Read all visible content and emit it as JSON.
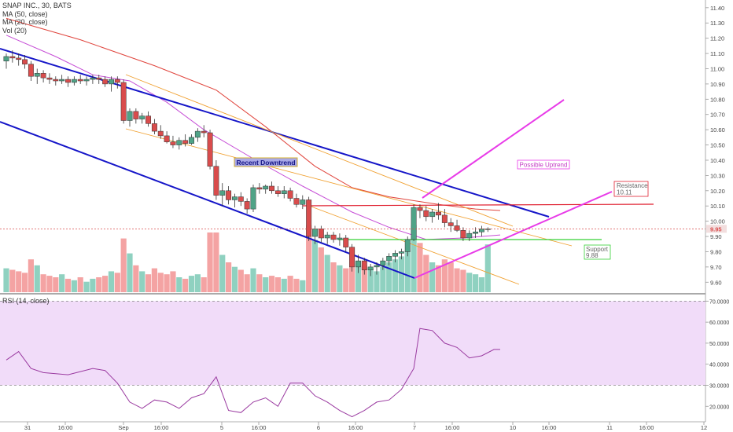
{
  "legend": {
    "symbol": "SNAP INC., 30, BATS",
    "ma50": "MA (50, close)",
    "ma20": "MA (20, close)",
    "vol": "Vol (20)"
  },
  "rsi_legend": "RSI (14, close)",
  "colors": {
    "up": "#4fa387",
    "down": "#d94c4c",
    "vol_up": "#8fd1c0",
    "vol_down": "#f4a3a3",
    "ma50": "#e0443c",
    "ma20": "#c64dd6",
    "channel": "#1515c8",
    "fib": "#f0a030",
    "magenta": "#e83be8",
    "resistance": "#e02030",
    "support": "#35d035",
    "rsi_line": "#9a3aa0",
    "rsi_band": "#f1dcf9"
  },
  "chart_data": {
    "type": "candlestick",
    "title": "SNAP INC., 30, BATS",
    "price_axis": {
      "ticks": [
        "11.40",
        "11.30",
        "11.20",
        "11.10",
        "11.00",
        "10.90",
        "10.80",
        "10.70",
        "10.60",
        "10.50",
        "10.40",
        "10.30",
        "10.20",
        "10.10",
        "10.00",
        "9.90",
        "9.80",
        "9.70",
        "9.60"
      ],
      "range": [
        9.55,
        11.43
      ],
      "last_price": "9.95"
    },
    "rsi_axis": {
      "ticks": [
        "70.0000",
        "60.0000",
        "50.0000",
        "40.0000",
        "30.0000",
        "20.0000"
      ],
      "range": [
        13,
        72
      ],
      "band": [
        30,
        70
      ]
    },
    "x_labels": [
      "31",
      "16:00",
      "Sep",
      "16:00",
      "5",
      "16:00",
      "6",
      "16:00",
      "7",
      "16:00",
      "10",
      "16:00",
      "11",
      "16:00",
      "12"
    ],
    "candles": [
      [
        11.05,
        11.1,
        11.0,
        11.08,
        16
      ],
      [
        11.08,
        11.12,
        11.04,
        11.07,
        15
      ],
      [
        11.07,
        11.1,
        11.02,
        11.06,
        14
      ],
      [
        11.06,
        11.09,
        11.0,
        11.03,
        13
      ],
      [
        11.03,
        11.05,
        10.92,
        10.95,
        22
      ],
      [
        10.95,
        11.0,
        10.9,
        10.97,
        18
      ],
      [
        10.97,
        10.99,
        10.91,
        10.94,
        12
      ],
      [
        10.94,
        10.97,
        10.9,
        10.93,
        11
      ],
      [
        10.93,
        10.95,
        10.89,
        10.92,
        10
      ],
      [
        10.92,
        10.96,
        10.9,
        10.93,
        12
      ],
      [
        10.93,
        10.95,
        10.88,
        10.91,
        9
      ],
      [
        10.91,
        10.95,
        10.89,
        10.93,
        8
      ],
      [
        10.93,
        10.96,
        10.9,
        10.92,
        10
      ],
      [
        10.92,
        10.95,
        10.89,
        10.93,
        7
      ],
      [
        10.93,
        10.96,
        10.9,
        10.94,
        9
      ],
      [
        10.94,
        10.96,
        10.9,
        10.93,
        10
      ],
      [
        10.93,
        10.95,
        10.88,
        10.9,
        11
      ],
      [
        10.9,
        10.95,
        10.85,
        10.93,
        14
      ],
      [
        10.93,
        10.95,
        10.87,
        10.91,
        13
      ],
      [
        10.91,
        10.93,
        10.64,
        10.66,
        36
      ],
      [
        10.66,
        10.74,
        10.62,
        10.72,
        26
      ],
      [
        10.72,
        10.74,
        10.64,
        10.67,
        18
      ],
      [
        10.67,
        10.71,
        10.64,
        10.69,
        14
      ],
      [
        10.69,
        10.72,
        10.62,
        10.64,
        12
      ],
      [
        10.64,
        10.67,
        10.57,
        10.59,
        16
      ],
      [
        10.59,
        10.63,
        10.54,
        10.56,
        13
      ],
      [
        10.56,
        10.59,
        10.51,
        10.52,
        12
      ],
      [
        10.52,
        10.56,
        10.48,
        10.5,
        14
      ],
      [
        10.5,
        10.55,
        10.47,
        10.53,
        10
      ],
      [
        10.53,
        10.57,
        10.49,
        10.51,
        9
      ],
      [
        10.51,
        10.57,
        10.5,
        10.55,
        11
      ],
      [
        10.55,
        10.61,
        10.52,
        10.59,
        12
      ],
      [
        10.59,
        10.63,
        10.55,
        10.58,
        10
      ],
      [
        10.58,
        10.6,
        10.34,
        10.36,
        40
      ],
      [
        10.36,
        10.4,
        10.14,
        10.17,
        40
      ],
      [
        10.17,
        10.25,
        10.1,
        10.2,
        25
      ],
      [
        10.2,
        10.23,
        10.11,
        10.14,
        20
      ],
      [
        10.14,
        10.18,
        10.09,
        10.16,
        17
      ],
      [
        10.16,
        10.19,
        10.1,
        10.13,
        15
      ],
      [
        10.13,
        10.15,
        10.05,
        10.08,
        12
      ],
      [
        10.08,
        10.24,
        10.06,
        10.22,
        16
      ],
      [
        10.22,
        10.25,
        10.18,
        10.21,
        12
      ],
      [
        10.21,
        10.24,
        10.18,
        10.23,
        10
      ],
      [
        10.23,
        10.26,
        10.18,
        10.2,
        11
      ],
      [
        10.2,
        10.23,
        10.16,
        10.18,
        10
      ],
      [
        10.18,
        10.23,
        10.15,
        10.2,
        9
      ],
      [
        10.2,
        10.22,
        10.13,
        10.15,
        11
      ],
      [
        10.15,
        10.18,
        10.09,
        10.11,
        9
      ],
      [
        10.11,
        10.17,
        10.08,
        10.14,
        8
      ],
      [
        10.14,
        10.16,
        9.87,
        9.9,
        45
      ],
      [
        9.9,
        9.97,
        9.85,
        9.95,
        35
      ],
      [
        9.95,
        9.97,
        9.86,
        9.89,
        30
      ],
      [
        9.89,
        9.93,
        9.85,
        9.91,
        25
      ],
      [
        9.91,
        9.93,
        9.86,
        9.88,
        20
      ],
      [
        9.88,
        9.92,
        9.84,
        9.89,
        18
      ],
      [
        9.89,
        9.91,
        9.8,
        9.83,
        16
      ],
      [
        9.83,
        9.85,
        9.67,
        9.7,
        30
      ],
      [
        9.7,
        9.78,
        9.66,
        9.74,
        20
      ],
      [
        9.74,
        9.76,
        9.65,
        9.68,
        18
      ],
      [
        9.68,
        9.72,
        9.64,
        9.7,
        16
      ],
      [
        9.7,
        9.73,
        9.65,
        9.71,
        14
      ],
      [
        9.71,
        9.76,
        9.68,
        9.74,
        17
      ],
      [
        9.74,
        9.79,
        9.71,
        9.77,
        20
      ],
      [
        9.77,
        9.81,
        9.73,
        9.79,
        22
      ],
      [
        9.79,
        9.82,
        9.75,
        9.8,
        24
      ],
      [
        9.8,
        9.9,
        9.77,
        9.88,
        28
      ],
      [
        9.88,
        10.11,
        9.87,
        10.09,
        45
      ],
      [
        10.09,
        10.11,
        10.02,
        10.07,
        33
      ],
      [
        10.07,
        10.1,
        10.0,
        10.03,
        25
      ],
      [
        10.03,
        10.08,
        9.99,
        10.06,
        20
      ],
      [
        10.06,
        10.12,
        10.01,
        10.04,
        18
      ],
      [
        10.04,
        10.08,
        9.96,
        9.99,
        22
      ],
      [
        9.99,
        10.02,
        9.93,
        9.97,
        20
      ],
      [
        9.97,
        10.01,
        9.93,
        9.94,
        16
      ],
      [
        9.94,
        9.96,
        9.87,
        9.89,
        15
      ],
      [
        9.89,
        9.94,
        9.87,
        9.92,
        13
      ],
      [
        9.92,
        9.96,
        9.89,
        9.93,
        12
      ],
      [
        9.93,
        9.97,
        9.9,
        9.95,
        10
      ],
      [
        9.95,
        9.96,
        9.93,
        9.95,
        32
      ]
    ],
    "ma50_points": [
      [
        0,
        11.33
      ],
      [
        12,
        11.19
      ],
      [
        24,
        11.02
      ],
      [
        34,
        10.86
      ],
      [
        42,
        10.62
      ],
      [
        50,
        10.36
      ],
      [
        56,
        10.22
      ],
      [
        62,
        10.16
      ],
      [
        70,
        10.11
      ],
      [
        76,
        10.08
      ],
      [
        80,
        10.07
      ]
    ],
    "ma20_points": [
      [
        0,
        11.22
      ],
      [
        8,
        11.08
      ],
      [
        14,
        10.96
      ],
      [
        20,
        10.92
      ],
      [
        26,
        10.78
      ],
      [
        32,
        10.6
      ],
      [
        40,
        10.41
      ],
      [
        48,
        10.23
      ],
      [
        56,
        10.06
      ],
      [
        62,
        9.96
      ],
      [
        68,
        9.88
      ],
      [
        74,
        9.89
      ],
      [
        80,
        9.91
      ]
    ],
    "rsi_points": [
      [
        0,
        42
      ],
      [
        2,
        46
      ],
      [
        4,
        38
      ],
      [
        6,
        36
      ],
      [
        10,
        35
      ],
      [
        14,
        38
      ],
      [
        16,
        37
      ],
      [
        18,
        31
      ],
      [
        20,
        22
      ],
      [
        22,
        19
      ],
      [
        24,
        23
      ],
      [
        26,
        22
      ],
      [
        28,
        19
      ],
      [
        30,
        24
      ],
      [
        32,
        26
      ],
      [
        34,
        34
      ],
      [
        36,
        18
      ],
      [
        38,
        17
      ],
      [
        40,
        22
      ],
      [
        42,
        24
      ],
      [
        44,
        20
      ],
      [
        46,
        31
      ],
      [
        48,
        31
      ],
      [
        50,
        25
      ],
      [
        52,
        22
      ],
      [
        54,
        18
      ],
      [
        56,
        15
      ],
      [
        58,
        18
      ],
      [
        60,
        22
      ],
      [
        62,
        23
      ],
      [
        64,
        28
      ],
      [
        66,
        38
      ],
      [
        67,
        57
      ],
      [
        69,
        56
      ],
      [
        71,
        50
      ],
      [
        73,
        48
      ],
      [
        75,
        43
      ],
      [
        77,
        44
      ],
      [
        79,
        47
      ],
      [
        80,
        47
      ]
    ]
  },
  "annotations": {
    "downtrend": "Recent Downtrend",
    "uptrend": "Possible Uptrend",
    "resistance_title": "Resistance",
    "resistance_value": "10.11",
    "support_title": "Support",
    "support_value": "9.88"
  }
}
